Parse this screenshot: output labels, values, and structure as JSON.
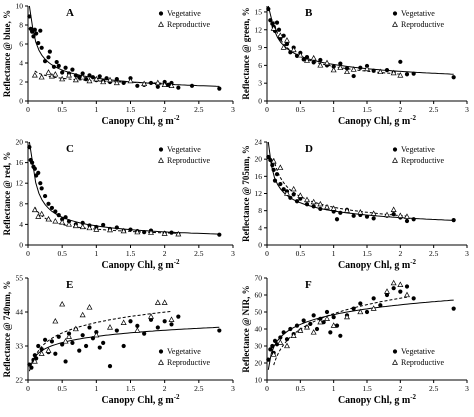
{
  "chart_data": [
    {
      "panel": "A",
      "type": "scatter",
      "xlabel": "Canopy Chl, g m",
      "xlabel_sup": "-2",
      "ylabel": "Reflectance @ blue, %",
      "xlim": [
        0,
        3
      ],
      "ylim": [
        0,
        10
      ],
      "xticks": [
        "0",
        "0.5",
        "1",
        "1.5",
        "2",
        "2.5",
        "3"
      ],
      "yticks": [
        "0",
        "2",
        "4",
        "6",
        "8",
        "10"
      ],
      "legend_position": "top-right",
      "series": [
        {
          "name": "Vegetative",
          "x": [
            0.02,
            0.04,
            0.06,
            0.08,
            0.1,
            0.12,
            0.15,
            0.18,
            0.2,
            0.25,
            0.3,
            0.32,
            0.38,
            0.42,
            0.45,
            0.5,
            0.55,
            0.6,
            0.65,
            0.7,
            0.75,
            0.8,
            0.85,
            0.9,
            0.95,
            1.0,
            1.05,
            1.1,
            1.15,
            1.2,
            1.3,
            1.4,
            1.5,
            1.6,
            1.7,
            1.8,
            1.9,
            2.0,
            2.05,
            2.1,
            2.2,
            2.4,
            2.8
          ],
          "y": [
            8.9,
            7.6,
            7.3,
            6.8,
            7.5,
            7.1,
            6.1,
            7.4,
            5.6,
            4.2,
            4.6,
            5.2,
            3.6,
            4.1,
            3.7,
            3.0,
            3.5,
            2.9,
            3.3,
            2.7,
            2.5,
            2.9,
            2.3,
            2.7,
            2.5,
            2.2,
            2.6,
            2.1,
            2.4,
            2.0,
            2.3,
            1.9,
            2.4,
            1.6,
            1.7,
            1.9,
            1.5,
            2.0,
            1.7,
            1.9,
            1.4,
            1.6,
            1.3
          ]
        },
        {
          "name": "Reproductive",
          "x": [
            0.1,
            0.2,
            0.3,
            0.35,
            0.4,
            0.5,
            0.6,
            0.7,
            0.8,
            0.9,
            1.0,
            1.1,
            1.2,
            1.3,
            1.5,
            1.7,
            1.9,
            2.0,
            2.1
          ],
          "y": [
            2.7,
            2.5,
            3.0,
            2.6,
            2.8,
            2.3,
            2.7,
            2.2,
            2.5,
            2.1,
            2.3,
            2.0,
            2.2,
            1.9,
            2.1,
            1.8,
            1.9,
            1.7,
            1.6
          ]
        }
      ]
    },
    {
      "panel": "B",
      "type": "scatter",
      "xlabel": "Canopy Chl, g m",
      "xlabel_sup": "-2",
      "ylabel": "Reflectance @ green, %",
      "xlim": [
        0,
        3
      ],
      "ylim": [
        0,
        16
      ],
      "xticks": [
        "0",
        "0.5",
        "1",
        "1.5",
        "2",
        "2.5",
        "3"
      ],
      "yticks": [
        "0",
        "3",
        "6",
        "9",
        "12",
        "15"
      ],
      "legend_position": "top-right",
      "series": [
        {
          "name": "Vegetative",
          "x": [
            0.02,
            0.05,
            0.08,
            0.1,
            0.12,
            0.15,
            0.18,
            0.2,
            0.25,
            0.3,
            0.35,
            0.4,
            0.45,
            0.5,
            0.55,
            0.6,
            0.7,
            0.8,
            0.9,
            1.0,
            1.1,
            1.2,
            1.3,
            1.4,
            1.5,
            1.6,
            1.8,
            1.9,
            2.0,
            2.1,
            2.2,
            2.8
          ],
          "y": [
            15.5,
            13.6,
            13.0,
            12.5,
            11.8,
            13.2,
            12.0,
            10.5,
            11.0,
            9.6,
            8.2,
            9.0,
            7.6,
            8.1,
            7.0,
            7.4,
            6.5,
            6.9,
            6.0,
            5.8,
            6.3,
            5.5,
            4.2,
            5.6,
            5.9,
            5.1,
            5.2,
            4.8,
            6.6,
            4.5,
            4.6,
            4.0
          ]
        },
        {
          "name": "Reproductive",
          "x": [
            0.1,
            0.2,
            0.25,
            0.3,
            0.4,
            0.5,
            0.6,
            0.7,
            0.8,
            0.9,
            1.0,
            1.1,
            1.2,
            1.3,
            1.5,
            1.7,
            1.9,
            2.0
          ],
          "y": [
            12.2,
            11.0,
            9.0,
            10.2,
            8.6,
            7.7,
            6.8,
            7.2,
            6.0,
            6.4,
            5.2,
            5.6,
            4.9,
            5.3,
            5.4,
            4.9,
            4.7,
            4.3
          ]
        }
      ]
    },
    {
      "panel": "C",
      "type": "scatter",
      "xlabel": "Canopy Chl, g m",
      "xlabel_sup": "-2",
      "ylabel": "Reflectance @ red, %",
      "xlim": [
        0,
        3
      ],
      "ylim": [
        0,
        20
      ],
      "xticks": [
        "0",
        "0.5",
        "1",
        "1.5",
        "2",
        "2.5",
        "3"
      ],
      "yticks": [
        "0",
        "4",
        "8",
        "12",
        "16",
        "20"
      ],
      "legend_position": "top-right",
      "series": [
        {
          "name": "Vegetative",
          "x": [
            0.02,
            0.04,
            0.06,
            0.08,
            0.1,
            0.12,
            0.15,
            0.18,
            0.2,
            0.25,
            0.3,
            0.35,
            0.4,
            0.45,
            0.5,
            0.55,
            0.6,
            0.7,
            0.8,
            0.9,
            1.0,
            1.1,
            1.2,
            1.3,
            1.4,
            1.5,
            1.6,
            1.7,
            1.8,
            2.0,
            2.1,
            2.2,
            2.8
          ],
          "y": [
            19.0,
            16.5,
            16.0,
            15.2,
            14.8,
            13.5,
            14.0,
            12.0,
            11.0,
            9.5,
            8.0,
            7.2,
            6.5,
            5.8,
            5.0,
            5.4,
            4.6,
            4.0,
            4.3,
            3.8,
            3.5,
            3.9,
            3.1,
            3.4,
            2.8,
            3.0,
            2.7,
            2.5,
            2.8,
            2.3,
            2.4,
            2.1,
            2.0
          ]
        },
        {
          "name": "Reproductive",
          "x": [
            0.1,
            0.15,
            0.2,
            0.3,
            0.4,
            0.5,
            0.6,
            0.7,
            0.8,
            0.9,
            1.0,
            1.2,
            1.4,
            1.6,
            1.8,
            2.0,
            2.2
          ],
          "y": [
            6.8,
            5.5,
            6.0,
            5.0,
            4.6,
            4.4,
            4.0,
            3.7,
            3.5,
            3.3,
            3.0,
            2.9,
            2.7,
            2.5,
            2.4,
            2.2,
            2.1
          ]
        }
      ]
    },
    {
      "panel": "D",
      "type": "scatter",
      "xlabel": "Canopy Chl, g m",
      "xlabel_sup": "-2",
      "ylabel": "Reflectance @ 705nm, %",
      "xlim": [
        0,
        3
      ],
      "ylim": [
        0,
        24
      ],
      "xticks": [
        "0",
        "0.5",
        "1",
        "1.5",
        "2",
        "2.5",
        "3"
      ],
      "yticks": [
        "0",
        "4",
        "8",
        "12",
        "16",
        "20",
        "24"
      ],
      "legend_position": "top-right",
      "series": [
        {
          "name": "Vegetative",
          "x": [
            0.02,
            0.05,
            0.08,
            0.1,
            0.12,
            0.15,
            0.2,
            0.25,
            0.3,
            0.35,
            0.4,
            0.45,
            0.5,
            0.6,
            0.7,
            0.8,
            0.9,
            1.0,
            1.05,
            1.1,
            1.2,
            1.3,
            1.4,
            1.5,
            1.6,
            1.8,
            1.9,
            2.0,
            2.1,
            2.2,
            2.8
          ],
          "y": [
            20.5,
            19.8,
            18.6,
            17.5,
            15.0,
            16.5,
            14.2,
            13.0,
            12.5,
            11.0,
            11.8,
            10.2,
            10.8,
            9.5,
            9.0,
            8.4,
            8.6,
            7.8,
            6.0,
            7.5,
            8.2,
            6.8,
            7.0,
            6.6,
            6.2,
            6.8,
            7.2,
            6.4,
            5.6,
            6.0,
            5.8
          ]
        },
        {
          "name": "Reproductive",
          "x": [
            0.1,
            0.2,
            0.3,
            0.4,
            0.5,
            0.6,
            0.7,
            0.8,
            0.9,
            1.0,
            1.2,
            1.4,
            1.6,
            1.8,
            1.9,
            2.0,
            2.1
          ],
          "y": [
            19.5,
            18.0,
            12.0,
            13.0,
            11.5,
            10.5,
            10.0,
            9.5,
            8.8,
            8.5,
            8.0,
            7.6,
            7.3,
            7.0,
            8.2,
            6.8,
            6.6
          ]
        }
      ]
    },
    {
      "panel": "E",
      "type": "scatter",
      "xlabel": "Canopy Chl, g m",
      "xlabel_sup": "-2",
      "ylabel": "Reflectance @ 740nm, %",
      "xlim": [
        0,
        3
      ],
      "ylim": [
        22,
        55
      ],
      "xticks": [
        "0",
        "0.5",
        "1",
        "1.5",
        "2",
        "2.5",
        "3"
      ],
      "yticks": [
        "22",
        "33",
        "44",
        "55"
      ],
      "legend_position": "bottom-right",
      "series": [
        {
          "name": "Vegetative",
          "x": [
            0.02,
            0.05,
            0.08,
            0.1,
            0.12,
            0.15,
            0.2,
            0.25,
            0.3,
            0.35,
            0.4,
            0.45,
            0.5,
            0.55,
            0.6,
            0.65,
            0.7,
            0.75,
            0.8,
            0.85,
            0.9,
            0.95,
            1.0,
            1.05,
            1.1,
            1.2,
            1.3,
            1.4,
            1.5,
            1.6,
            1.7,
            1.8,
            1.9,
            2.0,
            2.1,
            2.2,
            2.8
          ],
          "y": [
            27.0,
            26.0,
            28.5,
            30.0,
            29.0,
            33.0,
            32.0,
            35.0,
            31.0,
            34.5,
            30.5,
            36.0,
            33.5,
            28.0,
            37.0,
            34.0,
            38.5,
            31.5,
            36.5,
            33.0,
            39.0,
            35.5,
            37.5,
            32.5,
            34.0,
            26.5,
            38.0,
            33.0,
            41.0,
            39.5,
            37.0,
            41.5,
            39.0,
            41.0,
            40.0,
            42.5,
            38.0
          ]
        },
        {
          "name": "Reproductive",
          "x": [
            0.1,
            0.2,
            0.3,
            0.4,
            0.5,
            0.55,
            0.6,
            0.7,
            0.8,
            0.9,
            1.0,
            1.2,
            1.4,
            1.6,
            1.8,
            1.9,
            2.0,
            2.1
          ],
          "y": [
            28.0,
            30.5,
            31.5,
            41.0,
            46.5,
            34.5,
            36.0,
            38.5,
            43.0,
            45.5,
            36.5,
            39.0,
            40.5,
            38.0,
            42.5,
            47.0,
            47.0,
            41.5
          ]
        }
      ]
    },
    {
      "panel": "F",
      "type": "scatter",
      "xlabel": "Canopy Chl, g m",
      "xlabel_sup": "-2",
      "ylabel": "Reflectance @ NIR, %",
      "xlim": [
        0,
        3
      ],
      "ylim": [
        10,
        70
      ],
      "xticks": [
        "0",
        "0.5",
        "1",
        "1.5",
        "2",
        "2.5",
        "3"
      ],
      "yticks": [
        "10",
        "20",
        "30",
        "40",
        "50",
        "60",
        "70"
      ],
      "legend_position": "bottom-right",
      "series": [
        {
          "name": "Vegetative",
          "x": [
            0.02,
            0.05,
            0.08,
            0.1,
            0.12,
            0.15,
            0.2,
            0.25,
            0.3,
            0.35,
            0.4,
            0.45,
            0.5,
            0.55,
            0.6,
            0.65,
            0.7,
            0.75,
            0.8,
            0.85,
            0.9,
            0.95,
            1.0,
            1.05,
            1.1,
            1.2,
            1.3,
            1.4,
            1.5,
            1.6,
            1.7,
            1.8,
            1.9,
            2.0,
            2.1,
            2.2,
            2.8
          ],
          "y": [
            22.0,
            28.0,
            30.0,
            26.0,
            33.0,
            31.0,
            35.0,
            38.0,
            34.0,
            40.0,
            37.0,
            42.0,
            39.0,
            45.0,
            41.0,
            43.0,
            48.0,
            40.0,
            46.0,
            44.0,
            50.0,
            38.0,
            47.0,
            42.0,
            36.0,
            48.0,
            52.0,
            55.0,
            50.0,
            58.0,
            54.0,
            60.0,
            64.0,
            62.0,
            65.0,
            58.0,
            52.0
          ]
        },
        {
          "name": "Reproductive",
          "x": [
            0.1,
            0.2,
            0.3,
            0.4,
            0.5,
            0.6,
            0.7,
            0.8,
            0.9,
            1.0,
            1.2,
            1.4,
            1.6,
            1.8,
            1.9,
            2.0,
            2.1
          ],
          "y": [
            25.0,
            32.0,
            30.0,
            36.0,
            39.0,
            41.0,
            38.0,
            44.0,
            46.0,
            42.0,
            47.0,
            50.0,
            52.0,
            62.0,
            67.0,
            66.0,
            60.0
          ]
        }
      ]
    }
  ]
}
